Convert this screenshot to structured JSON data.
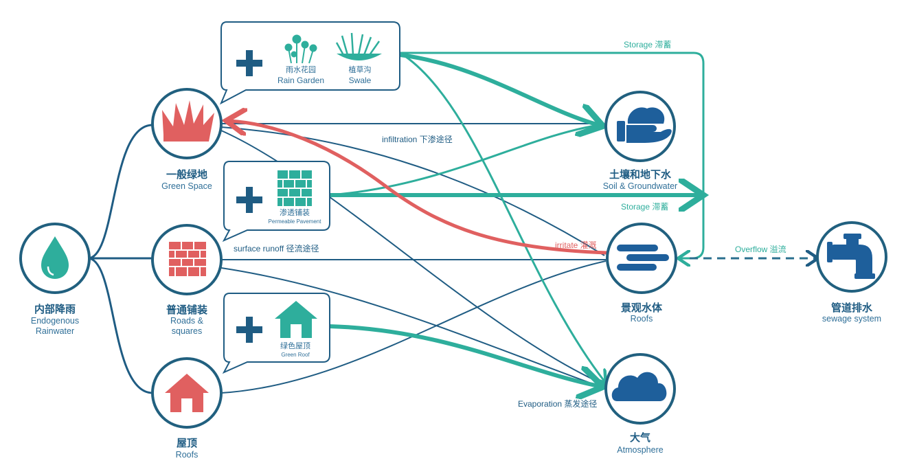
{
  "colors": {
    "navy": "#1f5c83",
    "dark_blue": "#1e5f9b",
    "teal": "#2eae9c",
    "red": "#e06060",
    "ring": "#21607f"
  },
  "nodes": {
    "rainwater": {
      "cn": "内部降雨",
      "en1": "Endogenous",
      "en2": "Rainwater",
      "icon": "water-drop-icon"
    },
    "green_space": {
      "cn": "一般绿地",
      "en": "Green Space",
      "icon": "grass-icon"
    },
    "roads": {
      "cn": "普通铺装",
      "en1": "Roads &",
      "en2": "squares",
      "icon": "brick-wall-icon"
    },
    "roofs_src": {
      "cn": "屋顶",
      "en": "Roofs",
      "icon": "house-icon"
    },
    "soil": {
      "cn": "土壤和地下水",
      "en": "Soil & Groundwater",
      "icon": "hand-soil-icon"
    },
    "water_body": {
      "cn": "景观水体",
      "en": "Roofs",
      "icon": "water-waves-icon"
    },
    "atmosphere": {
      "cn": "大气",
      "en": "Atmosphere",
      "icon": "cloud-icon"
    },
    "sewage": {
      "cn": "管道排水",
      "en": "sewage system",
      "icon": "pipe-icon"
    }
  },
  "callouts": {
    "rain_garden": {
      "cn": "雨水花园",
      "en": "Rain Garden",
      "icon": "flower-icon"
    },
    "swale": {
      "cn": "植草沟",
      "en": "Swale",
      "icon": "grass-tuft-icon"
    },
    "permeable": {
      "cn": "渗透铺装",
      "en": "Permeable Pavement",
      "icon": "green-brick-icon"
    },
    "green_roof": {
      "cn": "绿色屋顶",
      "en": "Green Roof",
      "icon": "green-house-icon"
    },
    "plus_icon": "plus-icon"
  },
  "flows": {
    "storage_top": "Storage 滞蓄",
    "storage_mid": "Storage 滞蓄",
    "infiltration": "infiltration 下渗途径",
    "surface_runoff": "surface runoff 径流途径",
    "irritate": "irritate 灌溉",
    "overflow": "Overflow 溢流",
    "evaporation": "Evaporation 蒸发途径"
  }
}
